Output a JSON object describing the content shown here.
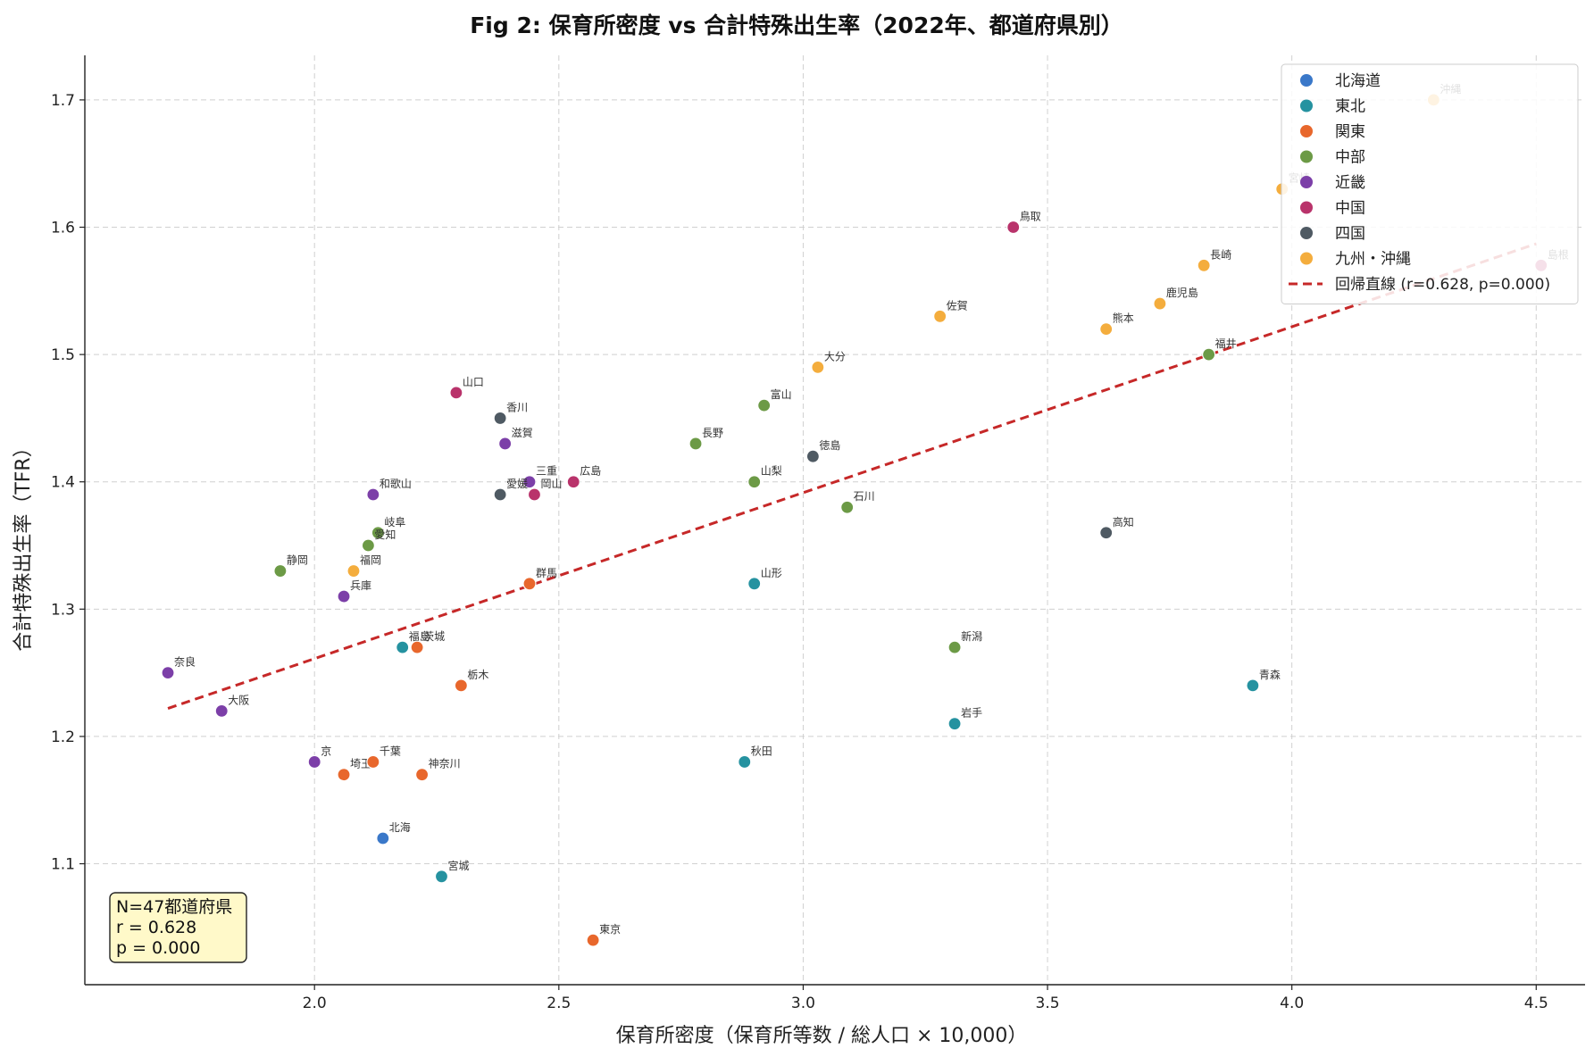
{
  "chart_data": {
    "type": "scatter",
    "title": "Fig 2: 保育所密度 vs 合計特殊出生率（2022年、都道府県別）",
    "xlabel": "保育所密度（保育所等数 / 総人口 × 10,000）",
    "ylabel": "合計特殊出生率（TFR）",
    "xlim": [
      1.53,
      4.6
    ],
    "ylim": [
      1.005,
      1.735
    ],
    "xticks": [
      2.0,
      2.5,
      3.0,
      3.5,
      4.0,
      4.5
    ],
    "yticks": [
      1.1,
      1.2,
      1.3,
      1.4,
      1.5,
      1.6,
      1.7
    ],
    "grid": true,
    "legend_position": "top-right",
    "series": [
      {
        "name": "北海道",
        "color": "#3a78c9",
        "points": [
          {
            "label": "北海",
            "x": 2.14,
            "y": 1.12
          }
        ]
      },
      {
        "name": "東北",
        "color": "#2592a0",
        "points": [
          {
            "label": "青森",
            "x": 3.92,
            "y": 1.24
          },
          {
            "label": "岩手",
            "x": 3.31,
            "y": 1.21
          },
          {
            "label": "宮城",
            "x": 2.26,
            "y": 1.09
          },
          {
            "label": "秋田",
            "x": 2.88,
            "y": 1.18
          },
          {
            "label": "山形",
            "x": 2.9,
            "y": 1.32
          },
          {
            "label": "福島",
            "x": 2.18,
            "y": 1.27
          }
        ]
      },
      {
        "name": "関東",
        "color": "#e8672c",
        "points": [
          {
            "label": "茨城",
            "x": 2.21,
            "y": 1.27
          },
          {
            "label": "栃木",
            "x": 2.3,
            "y": 1.24
          },
          {
            "label": "群馬",
            "x": 2.44,
            "y": 1.32
          },
          {
            "label": "埼玉",
            "x": 2.06,
            "y": 1.17
          },
          {
            "label": "千葉",
            "x": 2.12,
            "y": 1.18
          },
          {
            "label": "東京",
            "x": 2.57,
            "y": 1.04
          },
          {
            "label": "神奈川",
            "x": 2.22,
            "y": 1.17
          }
        ]
      },
      {
        "name": "中部",
        "color": "#6c9a46",
        "points": [
          {
            "label": "新潟",
            "x": 3.31,
            "y": 1.27
          },
          {
            "label": "富山",
            "x": 2.92,
            "y": 1.46
          },
          {
            "label": "石川",
            "x": 3.09,
            "y": 1.38
          },
          {
            "label": "福井",
            "x": 3.83,
            "y": 1.5
          },
          {
            "label": "山梨",
            "x": 2.9,
            "y": 1.4
          },
          {
            "label": "長野",
            "x": 2.78,
            "y": 1.43
          },
          {
            "label": "岐阜",
            "x": 2.13,
            "y": 1.36
          },
          {
            "label": "静岡",
            "x": 1.93,
            "y": 1.33
          },
          {
            "label": "愛知",
            "x": 2.11,
            "y": 1.35
          }
        ]
      },
      {
        "name": "近畿",
        "color": "#7c3fa8",
        "points": [
          {
            "label": "三重",
            "x": 2.44,
            "y": 1.4
          },
          {
            "label": "滋賀",
            "x": 2.39,
            "y": 1.43
          },
          {
            "label": "京",
            "x": 2.0,
            "y": 1.18
          },
          {
            "label": "大阪",
            "x": 1.81,
            "y": 1.22
          },
          {
            "label": "兵庫",
            "x": 2.06,
            "y": 1.31
          },
          {
            "label": "奈良",
            "x": 1.7,
            "y": 1.25
          },
          {
            "label": "和歌山",
            "x": 2.12,
            "y": 1.39
          }
        ]
      },
      {
        "name": "中国",
        "color": "#b9336b",
        "points": [
          {
            "label": "鳥取",
            "x": 3.43,
            "y": 1.6
          },
          {
            "label": "島根",
            "x": 4.51,
            "y": 1.57
          },
          {
            "label": "岡山",
            "x": 2.45,
            "y": 1.39
          },
          {
            "label": "広島",
            "x": 2.53,
            "y": 1.4
          },
          {
            "label": "山口",
            "x": 2.29,
            "y": 1.47
          }
        ]
      },
      {
        "name": "四国",
        "color": "#4f5a63",
        "points": [
          {
            "label": "徳島",
            "x": 3.02,
            "y": 1.42
          },
          {
            "label": "香川",
            "x": 2.38,
            "y": 1.45
          },
          {
            "label": "愛媛",
            "x": 2.38,
            "y": 1.39
          },
          {
            "label": "高知",
            "x": 3.62,
            "y": 1.36
          }
        ]
      },
      {
        "name": "九州・沖縄",
        "color": "#f4ad3d",
        "points": [
          {
            "label": "福岡",
            "x": 2.08,
            "y": 1.33
          },
          {
            "label": "佐賀",
            "x": 3.28,
            "y": 1.53
          },
          {
            "label": "長崎",
            "x": 3.82,
            "y": 1.57
          },
          {
            "label": "熊本",
            "x": 3.62,
            "y": 1.52
          },
          {
            "label": "大分",
            "x": 3.03,
            "y": 1.49
          },
          {
            "label": "宮崎",
            "x": 3.98,
            "y": 1.63
          },
          {
            "label": "鹿児島",
            "x": 3.73,
            "y": 1.54
          },
          {
            "label": "沖縄",
            "x": 4.29,
            "y": 1.7
          }
        ]
      }
    ],
    "regression": {
      "label": "回帰直線 (r=0.628, p=0.000)",
      "color": "#c62828",
      "x": [
        1.7,
        4.5
      ],
      "y": [
        1.222,
        1.587
      ]
    },
    "stats_box": [
      "N=47都道府県",
      "r = 0.628",
      "p = 0.000"
    ]
  }
}
